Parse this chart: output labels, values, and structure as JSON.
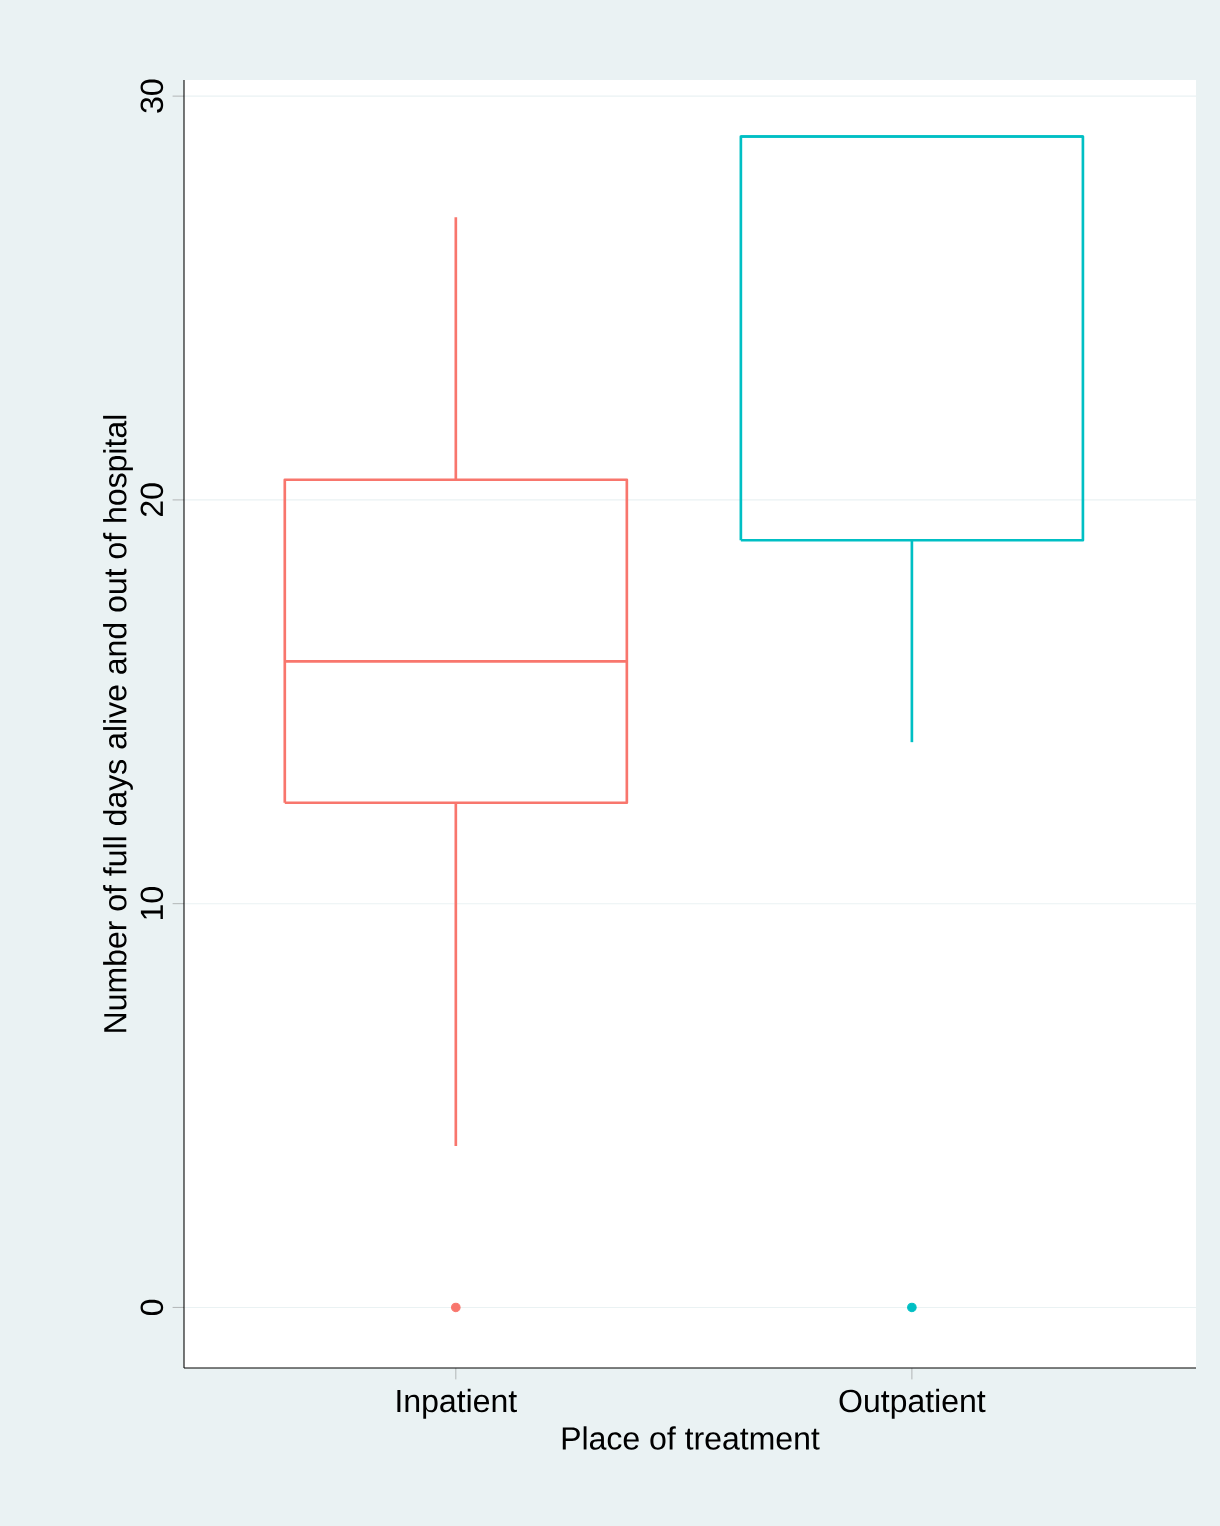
{
  "chart_data": {
    "type": "box",
    "xlabel": "Place of treatment",
    "ylabel": "Number of full days alive and out of hospital",
    "categories": [
      "Inpatient",
      "Outpatient"
    ],
    "series": [
      {
        "color": "#f8766d",
        "boxes": [
          {
            "low": 4,
            "q1": 12.5,
            "median": 16,
            "q3": 20.5,
            "high": 27,
            "outliers": [
              0
            ]
          },
          null
        ]
      },
      {
        "color": "#00bfc4",
        "boxes": [
          null,
          {
            "low": 14,
            "q1": 19,
            "median": 29,
            "q3": 29,
            "high": 29,
            "outliers": [
              0
            ]
          }
        ]
      }
    ],
    "ylim": [
      -1.5,
      30.4
    ],
    "yticks": [
      0,
      10,
      20,
      30
    ],
    "grid": "y"
  }
}
